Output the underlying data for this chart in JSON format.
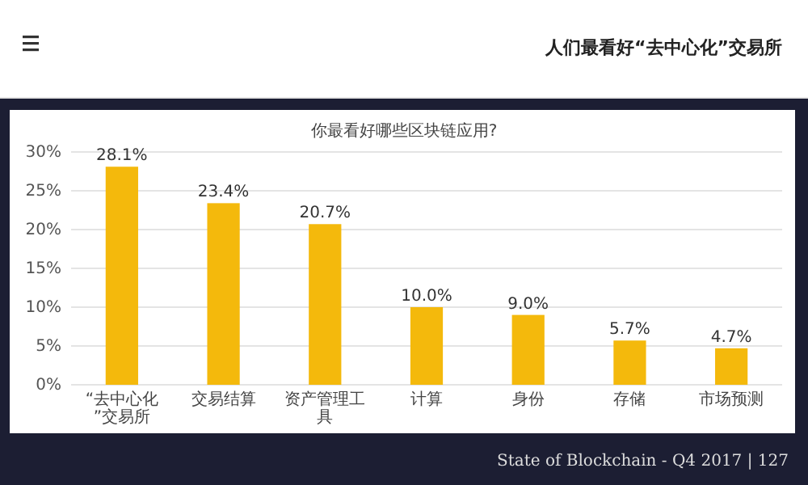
{
  "chart_data": {
    "type": "bar",
    "title": "人们最看好“去中心化”交易所",
    "subtitle": "你最看好哪些区块链应用?",
    "categories": [
      "“去中心化”交易所",
      "交易结算",
      "资产管理工具",
      "计算",
      "身份",
      "存储",
      "市场预测"
    ],
    "values": [
      28.1,
      23.4,
      20.7,
      10.0,
      9.0,
      5.7,
      4.7
    ],
    "color": "#f4b90c",
    "value_labels": [
      "28.1%",
      "23.4%",
      "20.7%",
      "10.0%",
      "9.0%",
      "5.7%",
      "4.7%"
    ],
    "ylim": [
      0,
      30
    ],
    "yticks": [
      {
        "value": 0,
        "label": "0%"
      },
      {
        "value": 5,
        "label": "5%"
      },
      {
        "value": 10,
        "label": "10%"
      },
      {
        "value": 15,
        "label": "15%"
      },
      {
        "value": 20,
        "label": "20%"
      },
      {
        "value": 25,
        "label": "25%"
      },
      {
        "value": 30,
        "label": "30%"
      }
    ],
    "grid": "y",
    "annotations": [
      "State of Blockchain - Q4 2017  |  127"
    ]
  }
}
